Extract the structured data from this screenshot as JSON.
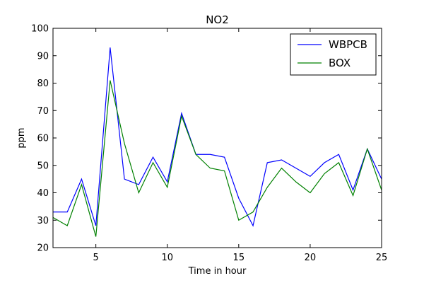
{
  "chart_data": {
    "type": "line",
    "title": "NO2",
    "xlabel": "Time in hour",
    "ylabel": "ppm",
    "xlim": [
      2,
      25
    ],
    "ylim": [
      20,
      100
    ],
    "xticks": [
      "5",
      "10",
      "15",
      "20",
      "25"
    ],
    "yticks": [
      "20",
      "30",
      "40",
      "50",
      "60",
      "70",
      "80",
      "90",
      "100"
    ],
    "grid": false,
    "legend_position": "top-right",
    "x": [
      2,
      3,
      4,
      5,
      6,
      7,
      8,
      9,
      10,
      11,
      12,
      13,
      14,
      15,
      16,
      17,
      18,
      19,
      20,
      21,
      22,
      23,
      24,
      25
    ],
    "series": [
      {
        "name": "WBPCB",
        "color": "#0000ff",
        "values": [
          33,
          33,
          45,
          28,
          93,
          45,
          43,
          53,
          44,
          69,
          54,
          54,
          53,
          38,
          28,
          51,
          52,
          49,
          46,
          51,
          54,
          41,
          56,
          45
        ]
      },
      {
        "name": "BOX",
        "color": "#008000",
        "values": [
          31,
          28,
          43,
          24,
          81,
          58,
          40,
          51,
          42,
          68,
          54,
          49,
          48,
          30,
          33,
          42,
          49,
          44,
          40,
          47,
          51,
          39,
          56,
          41
        ]
      }
    ]
  }
}
